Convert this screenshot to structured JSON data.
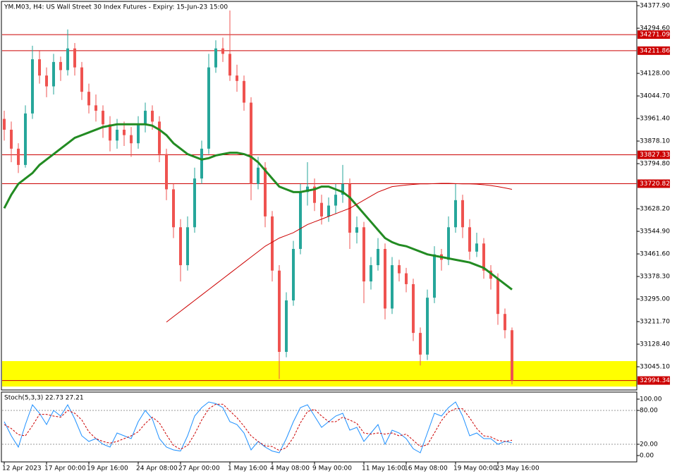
{
  "chart_data": {
    "type": "candlestick",
    "title": "YM.M03, H4:  US Wall Street 30 Index Futures - Expiry: 15-Jun-23 15:00",
    "categories": [
      "12 Apr 2023",
      null,
      null,
      null,
      null,
      null,
      "17 Apr 00:00",
      null,
      null,
      null,
      null,
      null,
      "19 Apr 16:00",
      null,
      null,
      null,
      null,
      null,
      null,
      "24 Apr 08:00",
      null,
      null,
      null,
      null,
      null,
      "27 Apr 00:00",
      null,
      null,
      null,
      null,
      null,
      null,
      "1 May 16:00",
      null,
      null,
      null,
      null,
      null,
      "4 May 08:00",
      null,
      null,
      null,
      null,
      null,
      "9 May 00:00",
      null,
      null,
      null,
      null,
      null,
      null,
      "11 May 16:00",
      null,
      null,
      null,
      null,
      null,
      "16 May 08:00",
      null,
      null,
      null,
      null,
      null,
      null,
      "19 May 00:00",
      null,
      null,
      null,
      null,
      null,
      "23 May 16:00",
      null,
      null
    ],
    "candles": [
      [
        33960,
        33990,
        33880,
        33920
      ],
      [
        33920,
        33950,
        33800,
        33850
      ],
      [
        33850,
        33870,
        33760,
        33790
      ],
      [
        33790,
        34010,
        33780,
        33980
      ],
      [
        33980,
        34230,
        33960,
        34180
      ],
      [
        34180,
        34210,
        34090,
        34120
      ],
      [
        34120,
        34150,
        34040,
        34080
      ],
      [
        34080,
        34200,
        34050,
        34170
      ],
      [
        34170,
        34190,
        34100,
        34140
      ],
      [
        34140,
        34290,
        34120,
        34220
      ],
      [
        34220,
        34240,
        34120,
        34150
      ],
      [
        34150,
        34170,
        34030,
        34060
      ],
      [
        34060,
        34090,
        33980,
        34010
      ],
      [
        34010,
        34050,
        33950,
        33990
      ],
      [
        33990,
        34010,
        33890,
        33940
      ],
      [
        33940,
        33970,
        33840,
        33880
      ],
      [
        33880,
        33960,
        33850,
        33920
      ],
      [
        33920,
        33950,
        33860,
        33900
      ],
      [
        33900,
        33930,
        33820,
        33870
      ],
      [
        33870,
        33970,
        33850,
        33940
      ],
      [
        33940,
        34020,
        33910,
        33990
      ],
      [
        33990,
        34010,
        33920,
        33950
      ],
      [
        33950,
        33970,
        33800,
        33830
      ],
      [
        33830,
        33850,
        33660,
        33700
      ],
      [
        33700,
        33720,
        33520,
        33560
      ],
      [
        33560,
        33590,
        33360,
        33420
      ],
      [
        33420,
        33600,
        33400,
        33560
      ],
      [
        33560,
        33780,
        33540,
        33740
      ],
      [
        33740,
        33880,
        33720,
        33850
      ],
      [
        33850,
        34200,
        33830,
        34150
      ],
      [
        34150,
        34250,
        34130,
        34220
      ],
      [
        34220,
        34260,
        34170,
        34200
      ],
      [
        34200,
        34360,
        34100,
        34120
      ],
      [
        34120,
        34160,
        34060,
        34100
      ],
      [
        34100,
        34120,
        33990,
        34020
      ],
      [
        34020,
        34040,
        33660,
        33720
      ],
      [
        33720,
        33820,
        33700,
        33780
      ],
      [
        33780,
        33800,
        33560,
        33600
      ],
      [
        33600,
        33620,
        33360,
        33400
      ],
      [
        33400,
        33420,
        33000,
        33100
      ],
      [
        33100,
        33320,
        33080,
        33290
      ],
      [
        33290,
        33510,
        33270,
        33480
      ],
      [
        33480,
        33720,
        33460,
        33690
      ],
      [
        33690,
        33800,
        33640,
        33710
      ],
      [
        33710,
        33740,
        33620,
        33650
      ],
      [
        33650,
        33680,
        33570,
        33600
      ],
      [
        33600,
        33670,
        33580,
        33640
      ],
      [
        33640,
        33720,
        33610,
        33680
      ],
      [
        33680,
        33790,
        33650,
        33720
      ],
      [
        33720,
        33740,
        33480,
        33540
      ],
      [
        33540,
        33600,
        33500,
        33560
      ],
      [
        33560,
        33580,
        33280,
        33360
      ],
      [
        33360,
        33450,
        33330,
        33420
      ],
      [
        33420,
        33520,
        33400,
        33480
      ],
      [
        33480,
        33500,
        33220,
        33260
      ],
      [
        33260,
        33450,
        33240,
        33420
      ],
      [
        33420,
        33440,
        33360,
        33390
      ],
      [
        33390,
        33410,
        33320,
        33350
      ],
      [
        33350,
        33370,
        33140,
        33170
      ],
      [
        33170,
        33190,
        33050,
        33090
      ],
      [
        33090,
        33330,
        33070,
        33300
      ],
      [
        33300,
        33490,
        33280,
        33460
      ],
      [
        33460,
        33480,
        33400,
        33440
      ],
      [
        33440,
        33600,
        33420,
        33560
      ],
      [
        33560,
        33720,
        33540,
        33660
      ],
      [
        33660,
        33680,
        33520,
        33560
      ],
      [
        33560,
        33590,
        33440,
        33470
      ],
      [
        33470,
        33540,
        33450,
        33500
      ],
      [
        33500,
        33520,
        33370,
        33400
      ],
      [
        33400,
        33420,
        33330,
        33370
      ],
      [
        33370,
        33390,
        33200,
        33240
      ],
      [
        33240,
        33260,
        33150,
        33180
      ],
      [
        33180,
        33190,
        32980,
        32994
      ]
    ],
    "up_color": "#26a69a",
    "down_color": "#ef5350",
    "series": [
      {
        "color": "#228b22",
        "values": [
          33630,
          33680,
          33720,
          33740,
          33760,
          33790,
          33810,
          33830,
          33850,
          33870,
          33890,
          33900,
          33910,
          33920,
          33930,
          33935,
          33940,
          33940,
          33940,
          33940,
          33940,
          33935,
          33920,
          33900,
          33870,
          33850,
          33830,
          33820,
          33810,
          33815,
          33825,
          33830,
          33835,
          33835,
          33830,
          33820,
          33800,
          33770,
          33740,
          33710,
          33700,
          33690,
          33690,
          33695,
          33700,
          33710,
          33710,
          33700,
          33690,
          33670,
          33640,
          33610,
          33580,
          33550,
          33520,
          33505,
          33495,
          33490,
          33480,
          33470,
          33460,
          33455,
          33450,
          33445,
          33440,
          33435,
          33430,
          33420,
          33410,
          33390,
          33370,
          33350,
          33330
        ]
      },
      {
        "color": "#cc0000",
        "values": [
          null,
          null,
          null,
          null,
          null,
          null,
          null,
          null,
          null,
          null,
          null,
          null,
          null,
          null,
          null,
          null,
          null,
          null,
          null,
          null,
          null,
          null,
          null,
          33210,
          33230,
          33250,
          33270,
          33290,
          33310,
          33330,
          33350,
          33370,
          33390,
          33410,
          33430,
          33450,
          33470,
          33490,
          33505,
          33520,
          33530,
          33540,
          33555,
          33570,
          33580,
          33590,
          33600,
          33610,
          33620,
          33630,
          33645,
          33660,
          33675,
          33690,
          33700,
          33710,
          33713,
          33716,
          33718,
          33720,
          33720,
          33721,
          33722,
          33722,
          33721,
          33720,
          33720,
          33719,
          33717,
          33714,
          33710,
          33705,
          33700
        ]
      }
    ],
    "ylim": [
      32962,
      34391
    ],
    "yticks": [
      {
        "value": 34377.9,
        "label": "34377.90"
      },
      {
        "value": 34294.6,
        "label": "34294.60"
      },
      {
        "value": 34128,
        "label": "34128.00"
      },
      {
        "value": 34044.7,
        "label": "34044.70"
      },
      {
        "value": 33961.4,
        "label": "33961.40"
      },
      {
        "value": 33878.1,
        "label": "33878.10"
      },
      {
        "value": 33794.8,
        "label": "33794.80"
      },
      {
        "value": 33628.2,
        "label": "33628.20"
      },
      {
        "value": 33544.9,
        "label": "33544.90"
      },
      {
        "value": 33461.6,
        "label": "33461.60"
      },
      {
        "value": 33378.3,
        "label": "33378.30"
      },
      {
        "value": 33295,
        "label": "33295.00"
      },
      {
        "value": 33211.7,
        "label": "33211.70"
      },
      {
        "value": 33128.4,
        "label": "33128.40"
      },
      {
        "value": 33045.1,
        "label": "33045.10"
      }
    ],
    "levels": [
      34271.09,
      34211.86,
      33827.33,
      33720.82,
      32994.34
    ],
    "level_color": "#cc0000",
    "zones": [
      {
        "from": 32972,
        "to": 33066,
        "color": "#ffff00"
      }
    ],
    "indicator": {
      "title": "Stoch(5,3,3) 22.73 27.21",
      "ylim": [
        0,
        100
      ],
      "yticks": [
        {
          "value": 100,
          "label": "100.00"
        },
        {
          "value": 80,
          "label": "80.00"
        },
        {
          "value": 20,
          "label": "20.00"
        },
        {
          "value": 0,
          "label": "0.00"
        }
      ],
      "levels": [
        80,
        20
      ],
      "series": [
        {
          "color": "#1e90ff",
          "dashed": false,
          "values": [
            60,
            35,
            15,
            55,
            90,
            75,
            55,
            80,
            70,
            90,
            65,
            35,
            25,
            30,
            20,
            15,
            40,
            35,
            30,
            60,
            80,
            65,
            30,
            15,
            10,
            8,
            35,
            70,
            85,
            95,
            92,
            85,
            60,
            55,
            40,
            10,
            25,
            15,
            8,
            5,
            30,
            60,
            85,
            90,
            70,
            50,
            60,
            70,
            75,
            45,
            50,
            25,
            40,
            55,
            20,
            45,
            40,
            30,
            12,
            5,
            40,
            75,
            70,
            85,
            95,
            70,
            35,
            40,
            30,
            30,
            20,
            25,
            22.73
          ]
        },
        {
          "color": "#cc0000",
          "dashed": true,
          "values": [
            55,
            48,
            37,
            35,
            53,
            73,
            73,
            70,
            68,
            80,
            75,
            63,
            42,
            30,
            25,
            22,
            25,
            30,
            35,
            42,
            57,
            68,
            58,
            37,
            18,
            11,
            18,
            38,
            63,
            83,
            91,
            91,
            79,
            67,
            52,
            35,
            25,
            17,
            16,
            9,
            14,
            32,
            58,
            78,
            82,
            70,
            60,
            60,
            68,
            63,
            57,
            40,
            38,
            40,
            38,
            40,
            35,
            38,
            27,
            16,
            19,
            40,
            62,
            77,
            83,
            83,
            67,
            48,
            35,
            33,
            27,
            25,
            27.21
          ]
        }
      ]
    }
  }
}
